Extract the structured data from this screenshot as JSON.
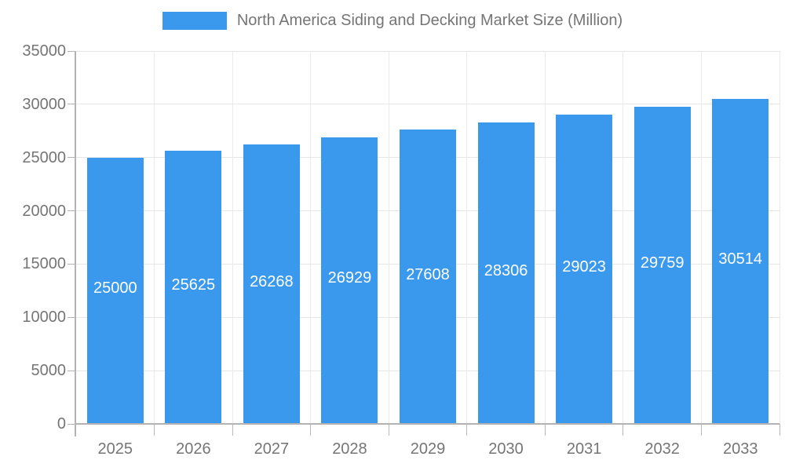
{
  "chart_data": {
    "type": "bar",
    "title": "North America Siding and Decking Market Size (Million)",
    "legend": {
      "label": "North America Siding and Decking Market Size (Million)",
      "position": "top-center"
    },
    "categories": [
      "2025",
      "2026",
      "2027",
      "2028",
      "2029",
      "2030",
      "2031",
      "2032",
      "2033"
    ],
    "series": [
      {
        "name": "North America Siding and Decking Market Size (Million)",
        "values": [
          25000,
          25625,
          26268,
          26929,
          27608,
          28306,
          29023,
          29759,
          30514
        ]
      }
    ],
    "bar_value_labels": [
      "25000",
      "25625",
      "26268",
      "26929",
      "27608",
      "28306",
      "29023",
      "29759",
      "30514"
    ],
    "xlabel": "",
    "ylabel": "",
    "ylim": [
      0,
      35000
    ],
    "yticks": [
      0,
      5000,
      10000,
      15000,
      20000,
      25000,
      30000,
      35000
    ],
    "grid": "horizontal and vertical gridlines on",
    "colors": {
      "bar": "#3A99ED",
      "bar_label_text": "#FFFFFF",
      "axis_text": "#757575",
      "axis_line": "#B3B3B3",
      "gridline": "#E6E6E6",
      "background": "#FFFFFF"
    }
  }
}
